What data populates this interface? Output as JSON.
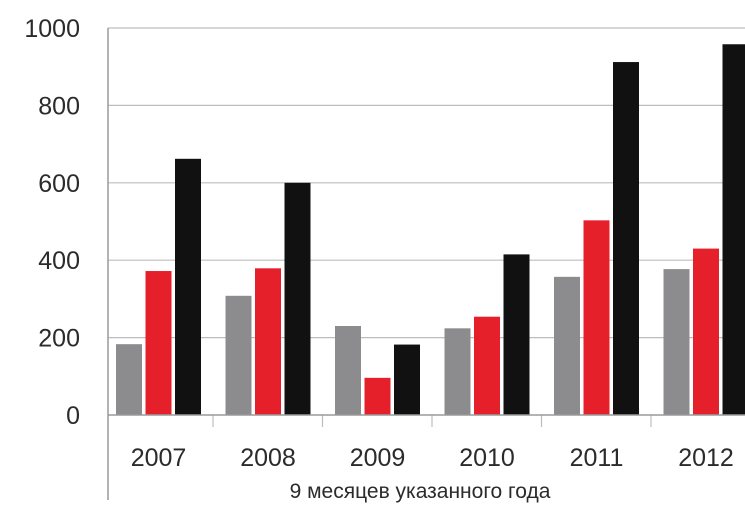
{
  "chart_data": {
    "type": "bar",
    "categories": [
      "2007",
      "2008",
      "2009",
      "2010",
      "2011",
      "2012"
    ],
    "series": [
      {
        "color": "#8c8c8e",
        "values": [
          183,
          308,
          230,
          224,
          357,
          377
        ]
      },
      {
        "color": "#e5202a",
        "values": [
          372,
          379,
          96,
          254,
          503,
          430
        ]
      },
      {
        "color": "#111111",
        "values": [
          662,
          600,
          182,
          415,
          912,
          958
        ]
      }
    ],
    "title": "",
    "xlabel": "9 месяцев указанного года",
    "ylabel": "",
    "ylim": [
      0,
      1000
    ],
    "yticks": [
      "0",
      "200",
      "400",
      "600",
      "800",
      "1000"
    ],
    "grid": true,
    "legend": "none"
  }
}
